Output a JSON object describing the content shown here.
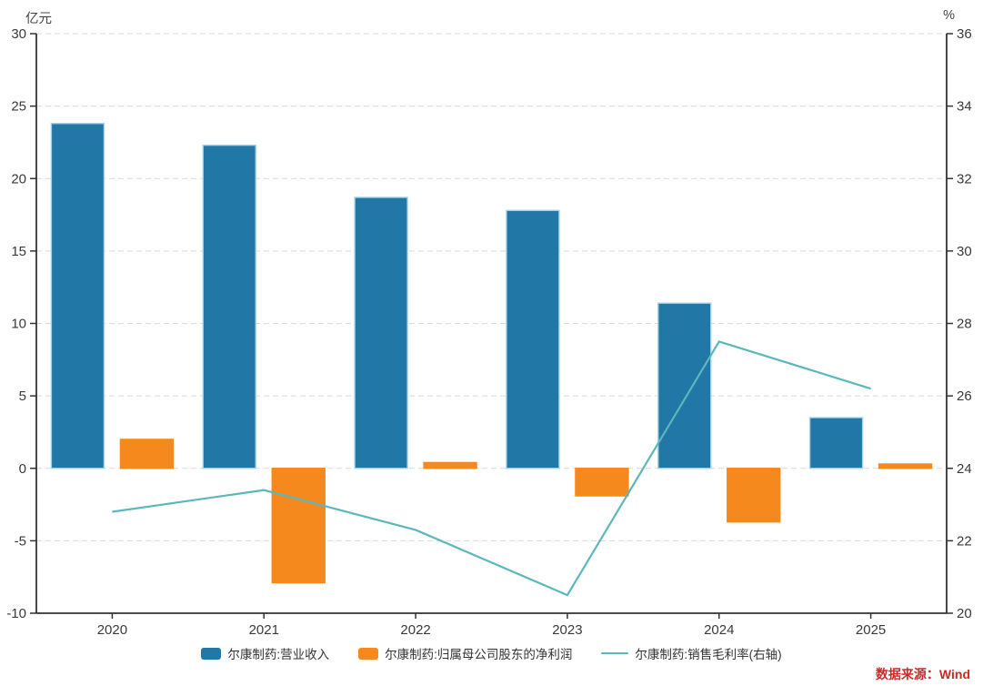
{
  "chart_data": {
    "type": "bar",
    "subtype": "combo-bar-line-dual-axis",
    "categories": [
      "2020",
      "2021",
      "2022",
      "2023",
      "2024",
      "2025"
    ],
    "left_axis": {
      "label": "亿元",
      "min": -10,
      "max": 30,
      "tick_step": 5,
      "ticks": [
        30,
        25,
        20,
        15,
        10,
        5,
        0,
        -5,
        -10
      ]
    },
    "right_axis": {
      "label": "%",
      "min": 20,
      "max": 36,
      "tick_step": 2,
      "ticks": [
        36,
        34,
        32,
        30,
        28,
        26,
        24,
        22,
        20
      ]
    },
    "series": [
      {
        "id": "revenue",
        "name": "尔康制药:营业收入",
        "type": "bar",
        "axis": "left",
        "color": "#2177A6",
        "edge_color": "#A5D2E6",
        "values": [
          23.8,
          22.3,
          18.7,
          17.8,
          11.4,
          3.5
        ]
      },
      {
        "id": "net-profit",
        "name": "尔康制药:归属母公司股东的净利润",
        "type": "bar",
        "axis": "left",
        "color": "#F6891E",
        "edge_color": "#F6891E",
        "values": [
          2.0,
          -7.9,
          0.4,
          -1.9,
          -3.7,
          0.3
        ]
      },
      {
        "id": "gross-margin",
        "name": "尔康制药:销售毛利率(右轴)",
        "type": "line",
        "axis": "right",
        "color": "#5BB7BB",
        "values": [
          22.8,
          23.4,
          22.3,
          20.5,
          27.5,
          26.2
        ]
      }
    ],
    "grid": "horizontal-dashed",
    "legend_position": "bottom"
  },
  "source_note": "数据来源：Wind",
  "colors": {
    "grid": "#D9D9D9",
    "axis": "#333333",
    "tick_text": "#3A3A3A",
    "source_text": "#CC2A2A"
  }
}
